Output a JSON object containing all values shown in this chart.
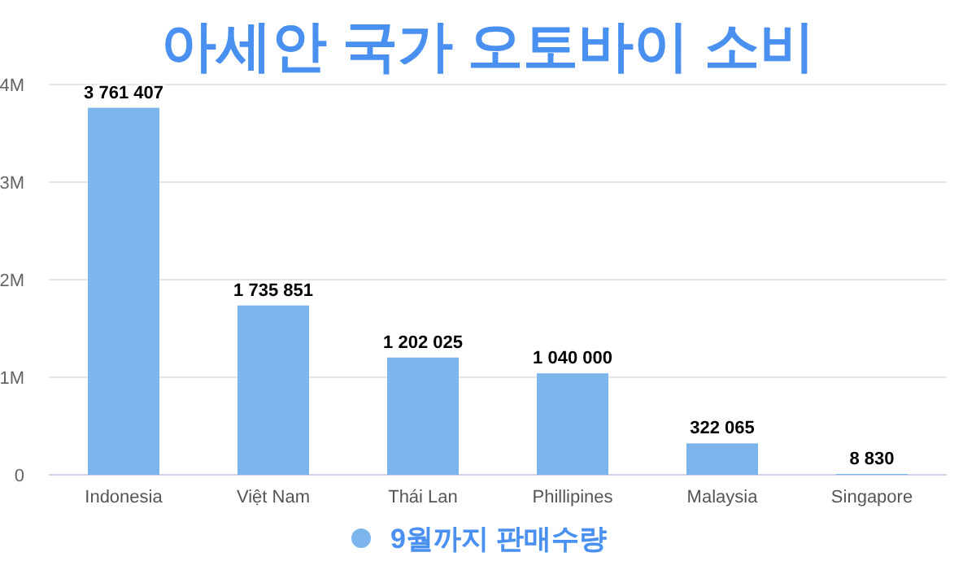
{
  "chart_data": {
    "type": "bar",
    "title": "아세안 국가 오토바이 소비",
    "categories": [
      "Indonesia",
      "Việt Nam",
      "Thái Lan",
      "Phillipines",
      "Malaysia",
      "Singapore"
    ],
    "series": [
      {
        "name": "9월까지 판매수량",
        "color": "#7cb4ec",
        "values": [
          3761407,
          1735851,
          1202025,
          1040000,
          322065,
          8830
        ],
        "value_labels": [
          "3 761 407",
          "1 735 851",
          "1 202 025",
          "1 040 000",
          "322 065",
          "8 830"
        ]
      }
    ],
    "ylim": [
      0,
      4000000
    ],
    "yticks": [
      {
        "value": 0,
        "label": "0"
      },
      {
        "value": 1000000,
        "label": "1M"
      },
      {
        "value": 2000000,
        "label": "2M"
      },
      {
        "value": 3000000,
        "label": "3M"
      },
      {
        "value": 4000000,
        "label": "4M"
      }
    ],
    "grid": "y",
    "legend": "bottom"
  }
}
